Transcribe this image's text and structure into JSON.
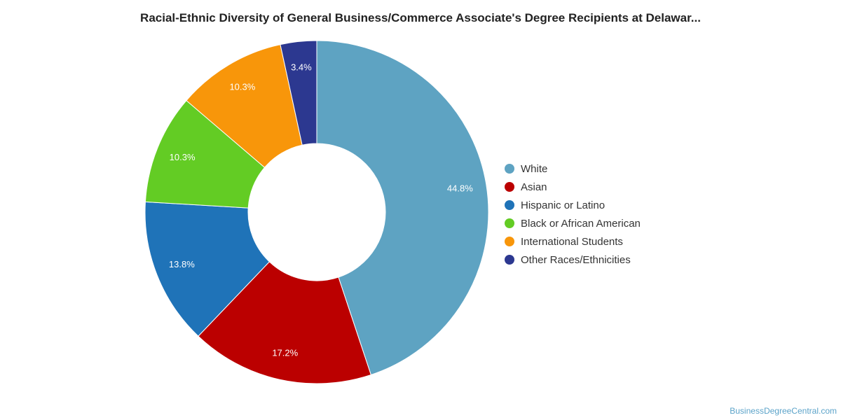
{
  "chart_data": {
    "type": "pie",
    "title": "Racial-Ethnic Diversity of General Business/Commerce Associate's Degree Recipients at Delawar...",
    "categories": [
      "White",
      "Asian",
      "Hispanic or Latino",
      "Black or African American",
      "International Students",
      "Other Races/Ethnicities"
    ],
    "values": [
      44.8,
      17.2,
      13.8,
      10.3,
      10.3,
      3.4
    ],
    "labels": [
      "44.8%",
      "17.2%",
      "13.8%",
      "10.3%",
      "10.3%",
      "3.4%"
    ],
    "colors": [
      "#5ea3c2",
      "#bb0000",
      "#1f73b8",
      "#63cc24",
      "#f8960a",
      "#2c3890"
    ],
    "donut": true,
    "legend_position": "right"
  },
  "credit": "BusinessDegreeCentral.com"
}
